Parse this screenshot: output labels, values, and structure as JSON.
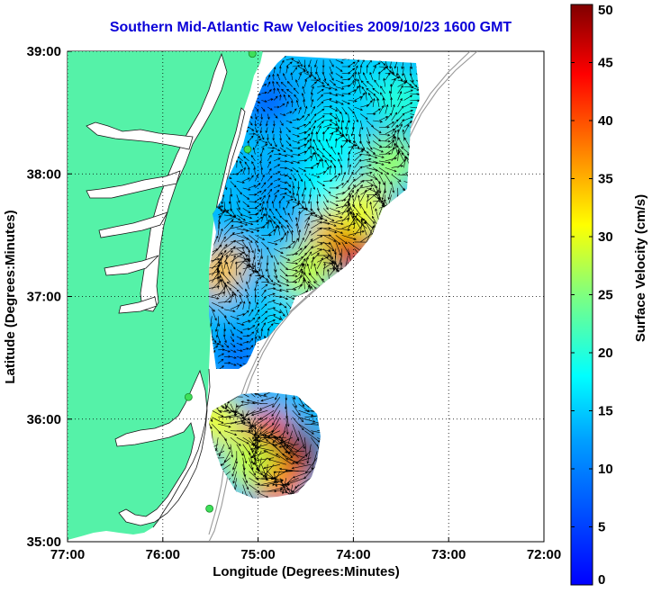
{
  "title": "Southern Mid-Atlantic Raw Velocities 2009/10/23 1600 GMT",
  "colors": {
    "land": "#55f2a8",
    "ocean": "#ffffff",
    "title": "#0a00d8",
    "station": "#3ee05a",
    "bathymetry": "#9a9a9a"
  },
  "axes": {
    "xlabel": "Longitude (Degrees:Minutes)",
    "ylabel": "Latitude (Degrees:Minutes)",
    "x_ticks": [
      {
        "value": -77,
        "label": "77:00"
      },
      {
        "value": -76,
        "label": "76:00"
      },
      {
        "value": -75,
        "label": "75:00"
      },
      {
        "value": -74,
        "label": "74:00"
      },
      {
        "value": -73,
        "label": "73:00"
      },
      {
        "value": -72,
        "label": "72:00"
      }
    ],
    "y_ticks": [
      {
        "value": 35,
        "label": "35:00"
      },
      {
        "value": 36,
        "label": "36:00"
      },
      {
        "value": 37,
        "label": "37:00"
      },
      {
        "value": 38,
        "label": "38:00"
      },
      {
        "value": 39,
        "label": "39:00"
      }
    ],
    "xlim": [
      -77,
      -72
    ],
    "ylim": [
      35,
      39
    ],
    "grid": "dotted"
  },
  "colorbar": {
    "label": "Surface Velocity (cm/s)",
    "range": [
      0,
      50
    ],
    "ticks": [
      {
        "value": 0,
        "label": "0"
      },
      {
        "value": 5,
        "label": "5"
      },
      {
        "value": 10,
        "label": "10"
      },
      {
        "value": 15,
        "label": "15"
      },
      {
        "value": 20,
        "label": "20"
      },
      {
        "value": 25,
        "label": "25"
      },
      {
        "value": 30,
        "label": "30"
      },
      {
        "value": 35,
        "label": "35"
      },
      {
        "value": 40,
        "label": "40"
      },
      {
        "value": 45,
        "label": "45"
      },
      {
        "value": 50,
        "label": "50"
      }
    ],
    "colormap": "jet"
  },
  "stations": [
    {
      "lon": -75.06,
      "lat": 38.98
    },
    {
      "lon": -75.11,
      "lat": 38.2
    },
    {
      "lon": -75.73,
      "lat": 36.18
    },
    {
      "lon": -75.51,
      "lat": 35.27
    }
  ],
  "chart_data": {
    "type": "heatmap",
    "title": "Southern Mid-Atlantic Raw Velocities 2009/10/23 1600 GMT",
    "xlabel": "Longitude (Degrees:Minutes)",
    "ylabel": "Latitude (Degrees:Minutes)",
    "xlim": [
      -77,
      -72
    ],
    "ylim": [
      35,
      39
    ],
    "value_label": "Surface Velocity (cm/s)",
    "value_range": [
      0,
      50
    ],
    "regions": [
      {
        "lon": -74.6,
        "lat": 38.85,
        "speed": 14
      },
      {
        "lon": -74.9,
        "lat": 38.6,
        "speed": 8
      },
      {
        "lon": -73.8,
        "lat": 38.75,
        "speed": 16
      },
      {
        "lon": -73.5,
        "lat": 38.6,
        "speed": 20
      },
      {
        "lon": -74.2,
        "lat": 38.3,
        "speed": 18
      },
      {
        "lon": -73.6,
        "lat": 38.1,
        "speed": 26
      },
      {
        "lon": -74.8,
        "lat": 37.9,
        "speed": 12
      },
      {
        "lon": -74.3,
        "lat": 37.9,
        "speed": 18
      },
      {
        "lon": -74.2,
        "lat": 37.5,
        "speed": 33
      },
      {
        "lon": -74.0,
        "lat": 37.4,
        "speed": 46
      },
      {
        "lon": -73.9,
        "lat": 37.7,
        "speed": 30
      },
      {
        "lon": -74.5,
        "lat": 37.2,
        "speed": 28
      },
      {
        "lon": -75.35,
        "lat": 37.2,
        "speed": 34
      },
      {
        "lon": -75.0,
        "lat": 37.0,
        "speed": 14
      },
      {
        "lon": -74.7,
        "lat": 36.8,
        "speed": 16
      },
      {
        "lon": -74.6,
        "lat": 36.5,
        "speed": 14
      },
      {
        "lon": -75.2,
        "lat": 36.5,
        "speed": 9
      },
      {
        "lon": -75.45,
        "lat": 36.0,
        "speed": 30
      },
      {
        "lon": -74.9,
        "lat": 35.85,
        "speed": 44
      },
      {
        "lon": -74.6,
        "lat": 35.7,
        "speed": 50
      },
      {
        "lon": -74.8,
        "lat": 35.5,
        "speed": 38
      },
      {
        "lon": -75.1,
        "lat": 35.65,
        "speed": 28
      }
    ]
  }
}
